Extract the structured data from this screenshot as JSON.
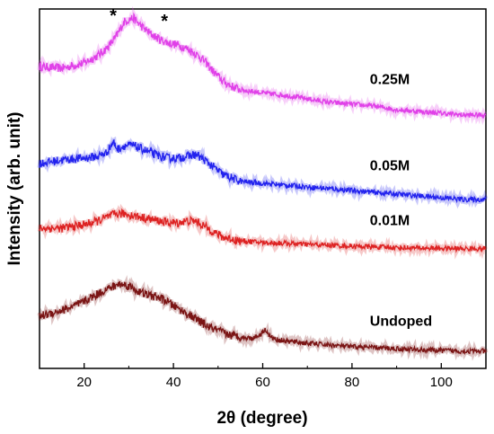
{
  "chart_data": {
    "type": "line",
    "xlabel": "2θ (degree)",
    "ylabel": "Intensity (arb. unit)",
    "xlim": [
      10,
      110
    ],
    "x_ticks": [
      20,
      40,
      60,
      80,
      100
    ],
    "y_ticks_shown": false,
    "grid": false,
    "legend": "inline-labels-right",
    "series": [
      {
        "name": "0.25M",
        "color": "#e040e8",
        "x": [
          10,
          15,
          20,
          23,
          25,
          27,
          29,
          31,
          33,
          35,
          37,
          39,
          41,
          43,
          45,
          47,
          49,
          51,
          53,
          55,
          58,
          61,
          65,
          70,
          75,
          80,
          85,
          90,
          95,
          100,
          105,
          110
        ],
        "y": [
          0.84,
          0.835,
          0.85,
          0.87,
          0.89,
          0.92,
          0.965,
          0.975,
          0.95,
          0.93,
          0.915,
          0.905,
          0.9,
          0.89,
          0.875,
          0.855,
          0.825,
          0.8,
          0.785,
          0.775,
          0.77,
          0.765,
          0.76,
          0.75,
          0.74,
          0.735,
          0.73,
          0.72,
          0.715,
          0.71,
          0.705,
          0.705
        ]
      },
      {
        "name": "0.05M",
        "color": "#2222ee",
        "x": [
          10,
          15,
          20,
          23,
          25,
          26.5,
          27.5,
          29,
          31,
          33,
          35,
          37,
          39,
          41,
          43,
          45,
          47,
          49,
          51,
          53,
          55,
          60,
          65,
          70,
          75,
          80,
          85,
          90,
          95,
          100,
          105,
          110
        ],
        "y": [
          0.57,
          0.58,
          0.585,
          0.59,
          0.6,
          0.63,
          0.61,
          0.62,
          0.62,
          0.61,
          0.6,
          0.59,
          0.585,
          0.585,
          0.59,
          0.595,
          0.58,
          0.56,
          0.54,
          0.53,
          0.52,
          0.515,
          0.51,
          0.505,
          0.5,
          0.495,
          0.49,
          0.485,
          0.48,
          0.475,
          0.47,
          0.47
        ]
      },
      {
        "name": "0.01M",
        "color": "#dd2222",
        "x": [
          10,
          15,
          20,
          23,
          25,
          27,
          29,
          31,
          33,
          35,
          37,
          39,
          41,
          43,
          45,
          47,
          49,
          51,
          53,
          55,
          60,
          65,
          70,
          75,
          80,
          85,
          90,
          95,
          100,
          105,
          110
        ],
        "y": [
          0.39,
          0.39,
          0.4,
          0.41,
          0.42,
          0.43,
          0.43,
          0.425,
          0.42,
          0.415,
          0.41,
          0.405,
          0.405,
          0.41,
          0.41,
          0.395,
          0.38,
          0.365,
          0.36,
          0.355,
          0.35,
          0.348,
          0.345,
          0.343,
          0.34,
          0.338,
          0.336,
          0.335,
          0.334,
          0.333,
          0.333
        ]
      },
      {
        "name": "Undoped",
        "color": "#7a1414",
        "x": [
          10,
          13,
          16,
          19,
          22,
          25,
          28,
          30,
          32,
          34,
          36,
          38,
          40,
          42,
          44,
          46,
          48,
          50,
          52,
          54,
          56,
          58,
          59.5,
          60.5,
          61.5,
          63,
          66,
          70,
          75,
          80,
          85,
          90,
          95,
          100,
          105,
          110
        ],
        "y": [
          0.145,
          0.155,
          0.165,
          0.18,
          0.2,
          0.22,
          0.235,
          0.23,
          0.215,
          0.205,
          0.2,
          0.19,
          0.175,
          0.16,
          0.145,
          0.13,
          0.115,
          0.105,
          0.095,
          0.09,
          0.085,
          0.085,
          0.095,
          0.11,
          0.09,
          0.08,
          0.075,
          0.07,
          0.065,
          0.06,
          0.058,
          0.055,
          0.052,
          0.05,
          0.048,
          0.048
        ]
      }
    ],
    "annotations": [
      {
        "text": "*",
        "x": 26.5,
        "y": 0.99
      },
      {
        "text": "*",
        "x": 38,
        "y": 0.975
      }
    ]
  }
}
